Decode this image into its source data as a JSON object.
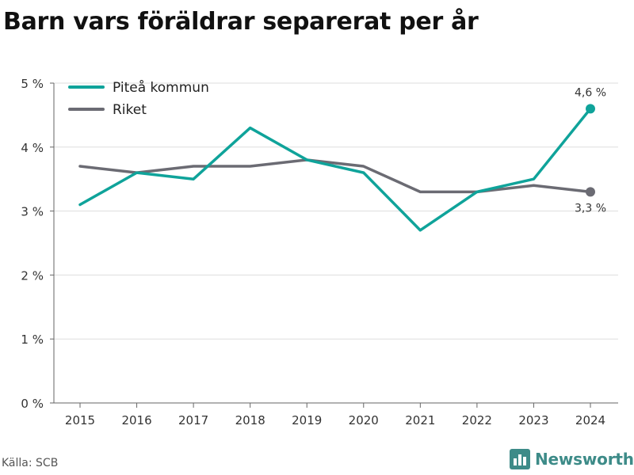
{
  "title": "Barn vars föräldrar separerat per år",
  "source": "Källa: SCB",
  "brand": {
    "name": "Newsworthy",
    "icon": "newsworthy-logo-icon",
    "color": "#3d8b88"
  },
  "chart_data": {
    "type": "line",
    "title": "Barn vars föräldrar separerat per år",
    "x": [
      "2015",
      "2016",
      "2017",
      "2018",
      "2019",
      "2020",
      "2021",
      "2022",
      "2023",
      "2024"
    ],
    "ylim": [
      0,
      5
    ],
    "yticks": [
      0,
      1,
      2,
      3,
      4,
      5
    ],
    "ytick_labels": [
      "0 %",
      "1 %",
      "2 %",
      "3 %",
      "4 %",
      "5 %"
    ],
    "grid": "horizontal",
    "legend_position": "top-left",
    "series": [
      {
        "name": "Piteå kommun",
        "color": "#0fa39a",
        "values": [
          3.1,
          3.6,
          3.5,
          4.3,
          3.8,
          3.6,
          2.7,
          3.3,
          3.5,
          4.6
        ],
        "end_label": "4,6 %"
      },
      {
        "name": "Riket",
        "color": "#6b6b73",
        "values": [
          3.7,
          3.6,
          3.7,
          3.7,
          3.8,
          3.7,
          3.3,
          3.3,
          3.4,
          3.3
        ],
        "end_label": "3,3 %"
      }
    ]
  }
}
